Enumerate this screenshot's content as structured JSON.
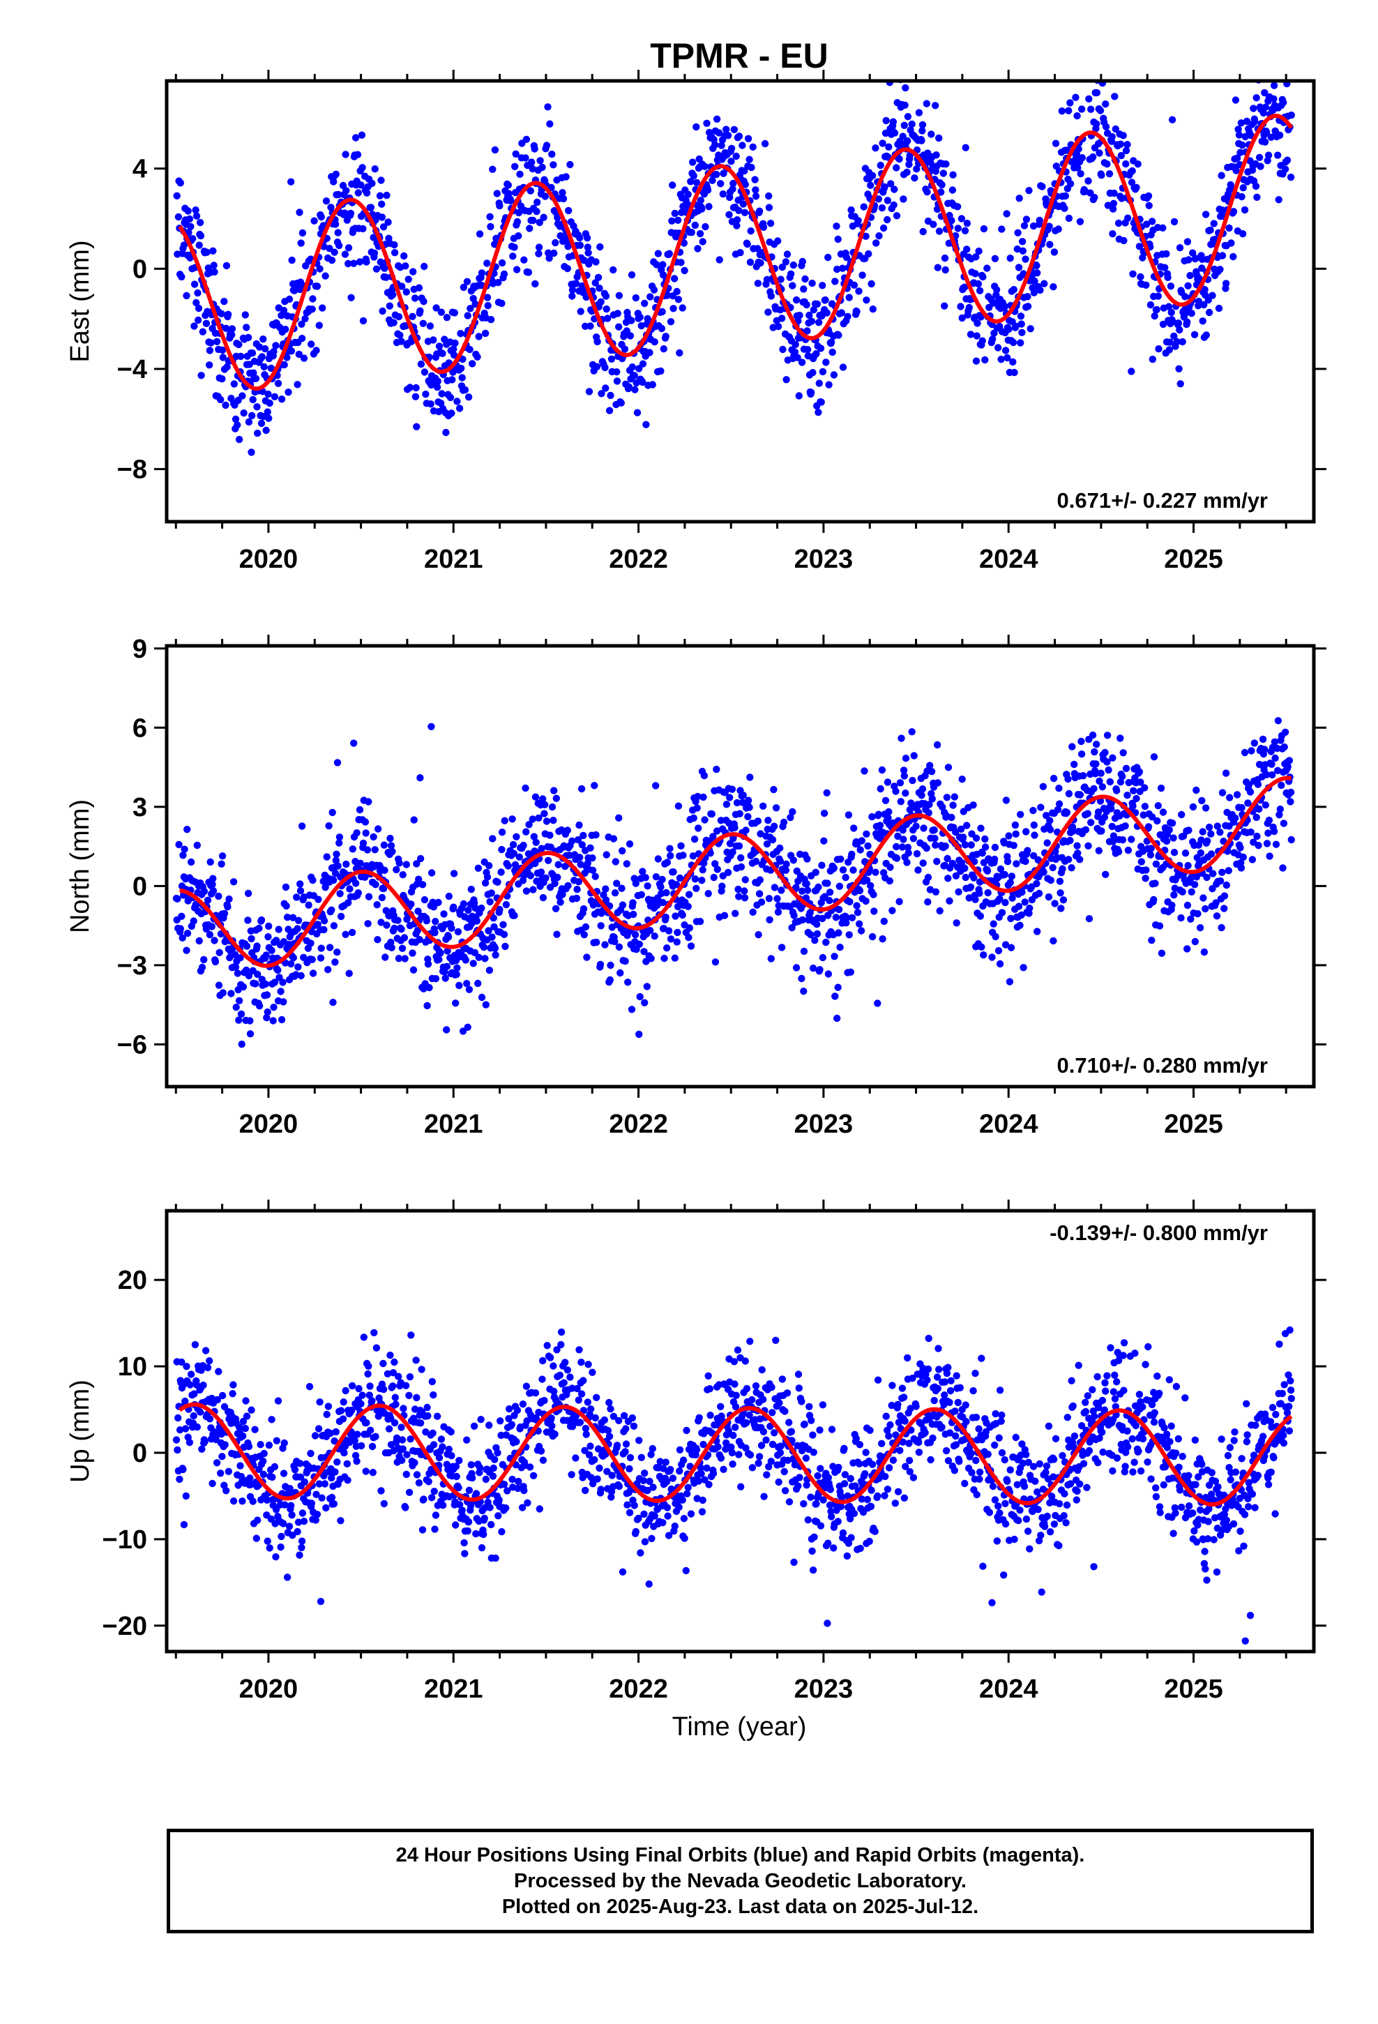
{
  "title": "TPMR - EU",
  "xlabel": "Time (year)",
  "colors": {
    "final_orbits": "#0000ff",
    "model_fit": "#ff0000",
    "frame": "#000000"
  },
  "chart_data": [
    {
      "type": "scatter",
      "component": "East",
      "ylabel": "East (mm)",
      "xlim": [
        2019.45,
        2025.65
      ],
      "ylim": [
        -10.1,
        7.5
      ],
      "yticks": [
        -8,
        -4,
        0,
        4
      ],
      "ytick_labels": [
        "−8",
        "−4",
        "0",
        "4"
      ],
      "xticks": [
        2020,
        2021,
        2022,
        2023,
        2024,
        2025
      ],
      "xtick_labels": [
        "2020",
        "2021",
        "2022",
        "2023",
        "2024",
        "2025"
      ],
      "rate_label": "0.671+/- 0.227 mm/yr",
      "rate_position": "bottom-right",
      "model": {
        "offset": -1.46,
        "slope": 0.671,
        "t0": 2019.53,
        "amplitude": 3.6,
        "phase": 2020.44,
        "scatter_sd": 1.35
      },
      "series": [
        {
          "name": "Final orbits (blue)",
          "color": "#0000ff",
          "role": "daily positions"
        },
        {
          "name": "Model fit (red)",
          "color": "#ff0000",
          "role": "fitted trend + seasonal"
        }
      ]
    },
    {
      "type": "scatter",
      "component": "North",
      "ylabel": "North (mm)",
      "xlim": [
        2019.45,
        2025.65
      ],
      "ylim": [
        -7.6,
        9.1
      ],
      "yticks": [
        -6,
        -3,
        0,
        3,
        6,
        9
      ],
      "ytick_labels": [
        "−6",
        "−3",
        "0",
        "3",
        "6",
        "9"
      ],
      "xticks": [
        2020,
        2021,
        2022,
        2023,
        2024,
        2025
      ],
      "xtick_labels": [
        "2020",
        "2021",
        "2022",
        "2023",
        "2024",
        "2025"
      ],
      "rate_label": "0.710+/- 0.280 mm/yr",
      "rate_position": "bottom-right",
      "model": {
        "offset": -1.75,
        "slope": 0.71,
        "t0": 2019.53,
        "amplitude": 1.6,
        "phase": 2020.5,
        "scatter_sd": 1.3
      },
      "series": [
        {
          "name": "Final orbits (blue)",
          "color": "#0000ff",
          "role": "daily positions"
        },
        {
          "name": "Model fit (red)",
          "color": "#ff0000",
          "role": "fitted trend + seasonal"
        }
      ]
    },
    {
      "type": "scatter",
      "component": "Up",
      "ylabel": "Up (mm)",
      "xlim": [
        2019.45,
        2025.65
      ],
      "ylim": [
        -23,
        28
      ],
      "yticks": [
        -20,
        -10,
        0,
        10,
        20
      ],
      "ytick_labels": [
        "−20",
        "−10",
        "0",
        "10",
        "20"
      ],
      "xticks": [
        2020,
        2021,
        2022,
        2023,
        2024,
        2025
      ],
      "xtick_labels": [
        "2020",
        "2021",
        "2022",
        "2023",
        "2024",
        "2025"
      ],
      "rate_label": "-0.139+/- 0.800 mm/yr",
      "rate_position": "top-right",
      "model": {
        "offset": 0.2,
        "slope": -0.139,
        "t0": 2019.53,
        "amplitude": 5.4,
        "phase": 2020.6,
        "scatter_sd": 3.6
      },
      "series": [
        {
          "name": "Final orbits (blue)",
          "color": "#0000ff",
          "role": "daily positions"
        },
        {
          "name": "Model fit (red)",
          "color": "#ff0000",
          "role": "fitted trend + seasonal"
        }
      ]
    }
  ],
  "caption": {
    "line1": "24 Hour Positions Using Final Orbits (blue) and Rapid Orbits (magenta).",
    "line2": "Processed by the Nevada Geodetic Laboratory.",
    "line3": "Plotted on 2025-Aug-23. Last data on 2025-Jul-12."
  }
}
